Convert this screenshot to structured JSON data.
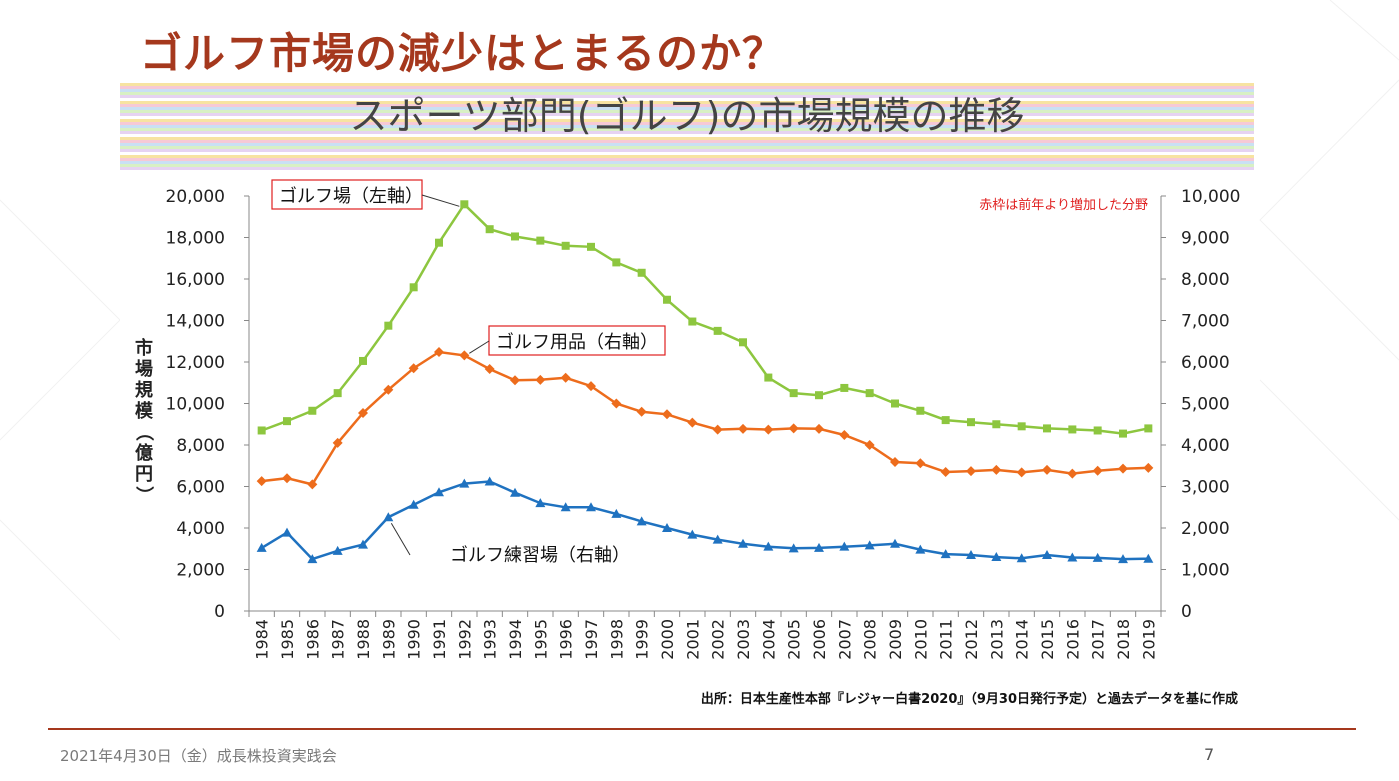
{
  "slide": {
    "title": "ゴルフ市場の減少はとまるのか？",
    "footer_date": "2021年4月30日（金）成長株投資実践会",
    "page_number": "7"
  },
  "colors": {
    "title": "#a5381d",
    "golf_course": "#8dc63f",
    "golf_goods": "#ed6c1c",
    "golf_range": "#1f72c0",
    "note": "#e02020"
  },
  "chart_data": {
    "type": "line",
    "title": "スポーツ部門(ゴルフ)の市場規模の推移",
    "ylabel": "市場規模（億円）",
    "xlabel": "",
    "note": "赤枠は前年より増加した分野",
    "source": "出所：日本生産性本部『レジャー白書2020』（9月30日発行予定）と過去データを基に作成",
    "ylim_left": [
      0,
      20000
    ],
    "ylim_right": [
      0,
      10000
    ],
    "yticks_left": [
      "0",
      "2,000",
      "4,000",
      "6,000",
      "8,000",
      "10,000",
      "12,000",
      "14,000",
      "16,000",
      "18,000",
      "20,000"
    ],
    "yticks_right": [
      "0",
      "1,000",
      "2,000",
      "3,000",
      "4,000",
      "5,000",
      "6,000",
      "7,000",
      "8,000",
      "9,000",
      "10,000"
    ],
    "grid": false,
    "categories": [
      "1984",
      "1985",
      "1986",
      "1987",
      "1988",
      "1989",
      "1990",
      "1991",
      "1992",
      "1993",
      "1994",
      "1995",
      "1996",
      "1997",
      "1998",
      "1999",
      "2000",
      "2001",
      "2002",
      "2003",
      "2004",
      "2005",
      "2006",
      "2007",
      "2008",
      "2009",
      "2010",
      "2011",
      "2012",
      "2013",
      "2014",
      "2015",
      "2016",
      "2017",
      "2018",
      "2019"
    ],
    "series": [
      {
        "name": "ゴルフ場（左軸）",
        "axis": "left",
        "marker": "square",
        "values": [
          8700,
          9150,
          9650,
          10500,
          12050,
          13750,
          15600,
          17750,
          19600,
          18400,
          18050,
          17850,
          17600,
          17550,
          16800,
          16300,
          15000,
          13950,
          13500,
          12950,
          11250,
          10500,
          10400,
          10750,
          10500,
          10000,
          9650,
          9200,
          9100,
          9000,
          8900,
          8800,
          8750,
          8700,
          8550,
          8800
        ]
      },
      {
        "name": "ゴルフ用品（右軸）",
        "axis": "right",
        "marker": "diamond",
        "values": [
          3130,
          3200,
          3050,
          4050,
          4770,
          5330,
          5850,
          6240,
          6160,
          5830,
          5560,
          5570,
          5620,
          5420,
          5000,
          4800,
          4740,
          4540,
          4370,
          4390,
          4370,
          4400,
          4390,
          4240,
          4000,
          3590,
          3560,
          3350,
          3370,
          3400,
          3340,
          3400,
          3310,
          3380,
          3430,
          3450
        ]
      },
      {
        "name": "ゴルフ練習場（右軸）",
        "axis": "right",
        "marker": "triangle",
        "values": [
          1520,
          1890,
          1250,
          1450,
          1600,
          2260,
          2560,
          2860,
          3070,
          3120,
          2850,
          2600,
          2500,
          2500,
          2340,
          2160,
          2000,
          1840,
          1720,
          1620,
          1550,
          1510,
          1520,
          1550,
          1580,
          1620,
          1480,
          1370,
          1350,
          1300,
          1270,
          1350,
          1290,
          1280,
          1250,
          1260
        ]
      }
    ]
  }
}
